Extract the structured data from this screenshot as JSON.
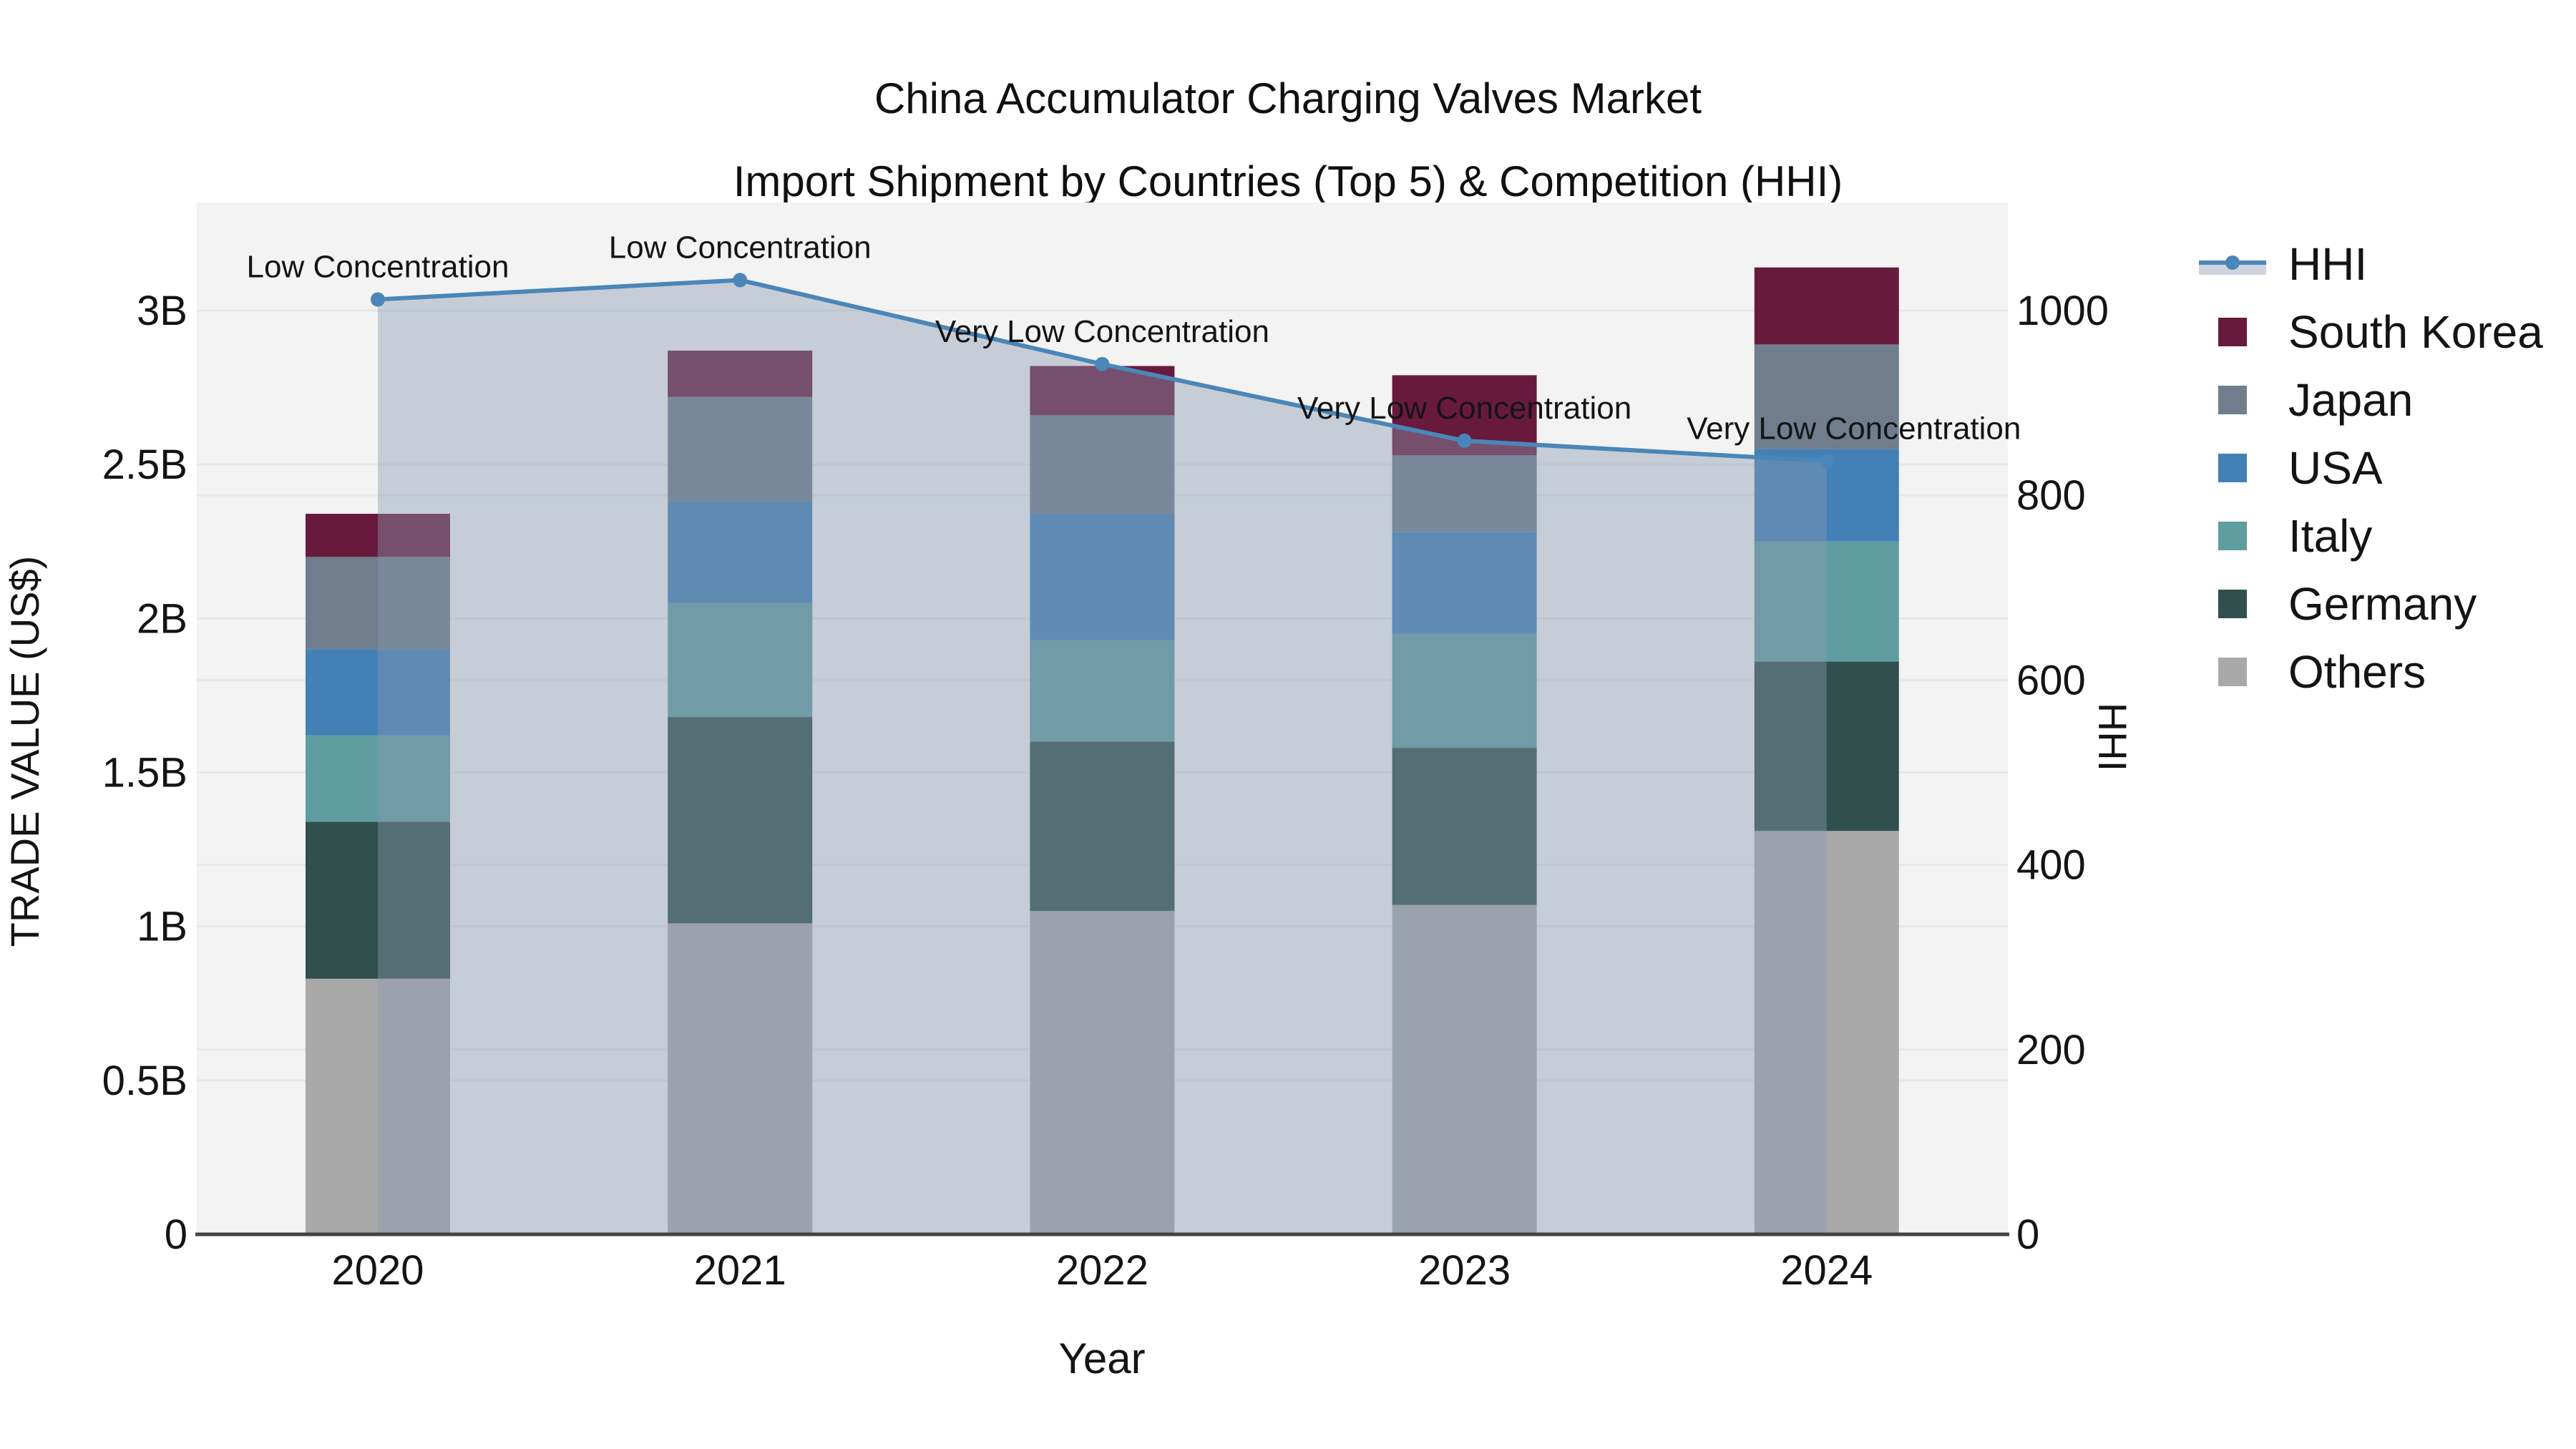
{
  "title": {
    "line1": "China Accumulator Charging Valves Market",
    "line2": "Import Shipment by Countries (Top 5) & Competition (HHI)"
  },
  "chart_data": {
    "type": "stacked-bar with line overlay (dual axis)",
    "categories": [
      "2020",
      "2021",
      "2022",
      "2023",
      "2024"
    ],
    "value_unit": "billions US$",
    "series": [
      {
        "name": "Others",
        "color": "#A9A9A9",
        "values": [
          0.83,
          1.01,
          1.05,
          1.07,
          1.31
        ]
      },
      {
        "name": "Germany",
        "color": "#31504D",
        "values": [
          0.51,
          0.67,
          0.55,
          0.51,
          0.55
        ]
      },
      {
        "name": "Italy",
        "color": "#5F9DA0",
        "values": [
          0.28,
          0.37,
          0.33,
          0.37,
          0.39
        ]
      },
      {
        "name": "USA",
        "color": "#4380B5",
        "values": [
          0.28,
          0.33,
          0.41,
          0.33,
          0.3
        ]
      },
      {
        "name": "Japan",
        "color": "#6F7D8C",
        "values": [
          0.3,
          0.34,
          0.32,
          0.25,
          0.34
        ]
      },
      {
        "name": "South Korea",
        "color": "#681A3D",
        "values": [
          0.14,
          0.15,
          0.16,
          0.26,
          0.25
        ]
      }
    ],
    "line_series": {
      "name": "HHI",
      "color": "#4A86B8",
      "fill_color": "rgba(137,152,176,0.42)",
      "values": [
        1012,
        1033,
        942,
        859,
        837
      ]
    },
    "annotations": [
      {
        "year": "2020",
        "label": "Low Concentration",
        "dx": 0
      },
      {
        "year": "2021",
        "label": "Low Concentration",
        "dx": 0
      },
      {
        "year": "2022",
        "label": "Very Low Concentration",
        "dx": 0
      },
      {
        "year": "2023",
        "label": "Very Low Concentration",
        "dx": 0
      },
      {
        "year": "2024",
        "label": "Very Low Concentration",
        "dx": 38
      }
    ],
    "axes": {
      "left": {
        "title": "TRADE VALUE (US$)",
        "ticks": [
          {
            "label": "0",
            "value": 0
          },
          {
            "label": "0.5B",
            "value": 0.5
          },
          {
            "label": "1B",
            "value": 1
          },
          {
            "label": "1.5B",
            "value": 1.5
          },
          {
            "label": "2B",
            "value": 2
          },
          {
            "label": "2.5B",
            "value": 2.5
          },
          {
            "label": "3B",
            "value": 3
          }
        ],
        "range": [
          0,
          3.35
        ]
      },
      "right": {
        "title": "HHI",
        "ticks": [
          {
            "label": "0",
            "value": 0
          },
          {
            "label": "200",
            "value": 200
          },
          {
            "label": "400",
            "value": 400
          },
          {
            "label": "600",
            "value": 600
          },
          {
            "label": "800",
            "value": 800
          },
          {
            "label": "1000",
            "value": 1000
          }
        ],
        "range": [
          0,
          1117
        ]
      },
      "x": {
        "title": "Year"
      }
    },
    "legend_order": [
      "HHI",
      "South Korea",
      "Japan",
      "USA",
      "Italy",
      "Germany",
      "Others"
    ],
    "style": {
      "plot_bg": "#f3f3f3",
      "gridline": "#e7e7e7",
      "axis_line": "#424242",
      "text": "#141414"
    }
  }
}
